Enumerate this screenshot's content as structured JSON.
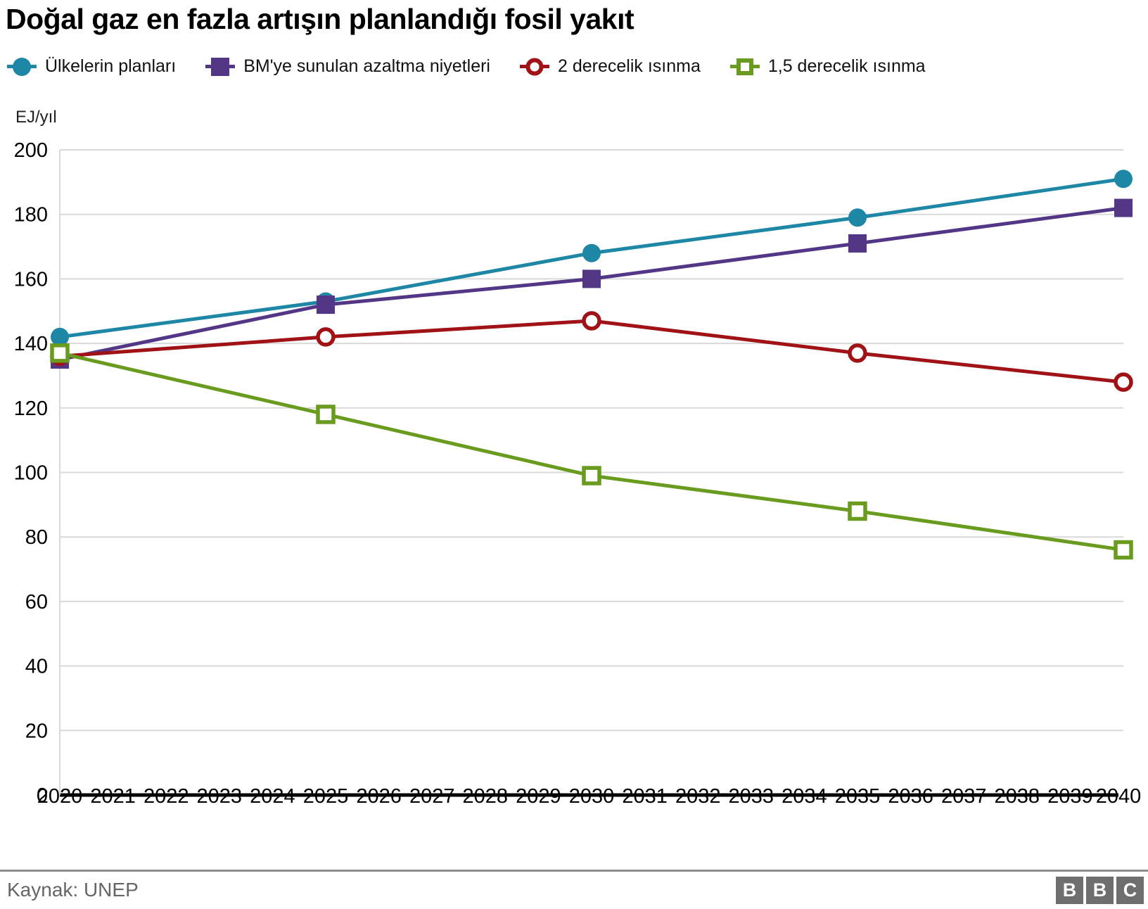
{
  "title": "Doğal gaz en fazla artışın planlandığı fosil yakıt",
  "legend": [
    {
      "label": "Ülkelerin planları",
      "marker": "circle-filled",
      "color": "#1e87a5"
    },
    {
      "label": "BM'ye sunulan azaltma niyetleri",
      "marker": "square-filled",
      "color": "#533786"
    },
    {
      "label": "2 derecelik ısınma",
      "marker": "circle-open",
      "color": "#a01215"
    },
    {
      "label": "1,5 derecelik ısınma",
      "marker": "square-open",
      "color": "#689b1e"
    }
  ],
  "chart_data": {
    "type": "line",
    "title": "Doğal gaz en fazla artışın planlandığı fosil yakıt",
    "ylabel": "EJ/yıl",
    "xlabel": "",
    "ylim": [
      0,
      200
    ],
    "yticks": [
      0,
      20,
      40,
      60,
      80,
      100,
      120,
      140,
      160,
      180,
      200
    ],
    "xticks": [
      2020,
      2021,
      2022,
      2023,
      2024,
      2025,
      2026,
      2027,
      2028,
      2029,
      2030,
      2031,
      2032,
      2033,
      2034,
      2035,
      2036,
      2037,
      2038,
      2039,
      2040
    ],
    "x": [
      2020,
      2025,
      2030,
      2035,
      2040
    ],
    "grid": true,
    "legend_position": "top",
    "series": [
      {
        "name": "Ülkelerin planları",
        "marker": "circle-filled",
        "color": "#1e87a5",
        "values": [
          142,
          153,
          168,
          179,
          191
        ]
      },
      {
        "name": "BM'ye sunulan azaltma niyetleri",
        "marker": "square-filled",
        "color": "#533786",
        "values": [
          135,
          152,
          160,
          171,
          182
        ]
      },
      {
        "name": "2 derecelik ısınma",
        "marker": "circle-open",
        "color": "#a01215",
        "values": [
          136,
          142,
          147,
          137,
          128
        ]
      },
      {
        "name": "1,5 derecelik ısınma",
        "marker": "square-open",
        "color": "#689b1e",
        "values": [
          137,
          118,
          99,
          88,
          76
        ]
      }
    ]
  },
  "footer": {
    "source": "Kaynak: UNEP",
    "logo_letters": [
      "B",
      "B",
      "C"
    ]
  },
  "colors": {
    "grid": "#d9d9d9",
    "axis": "#000000",
    "tick_text": "#000000",
    "source_text": "#666666",
    "divider": "#8c8c8c",
    "logo_bg": "#6e6e6e"
  }
}
